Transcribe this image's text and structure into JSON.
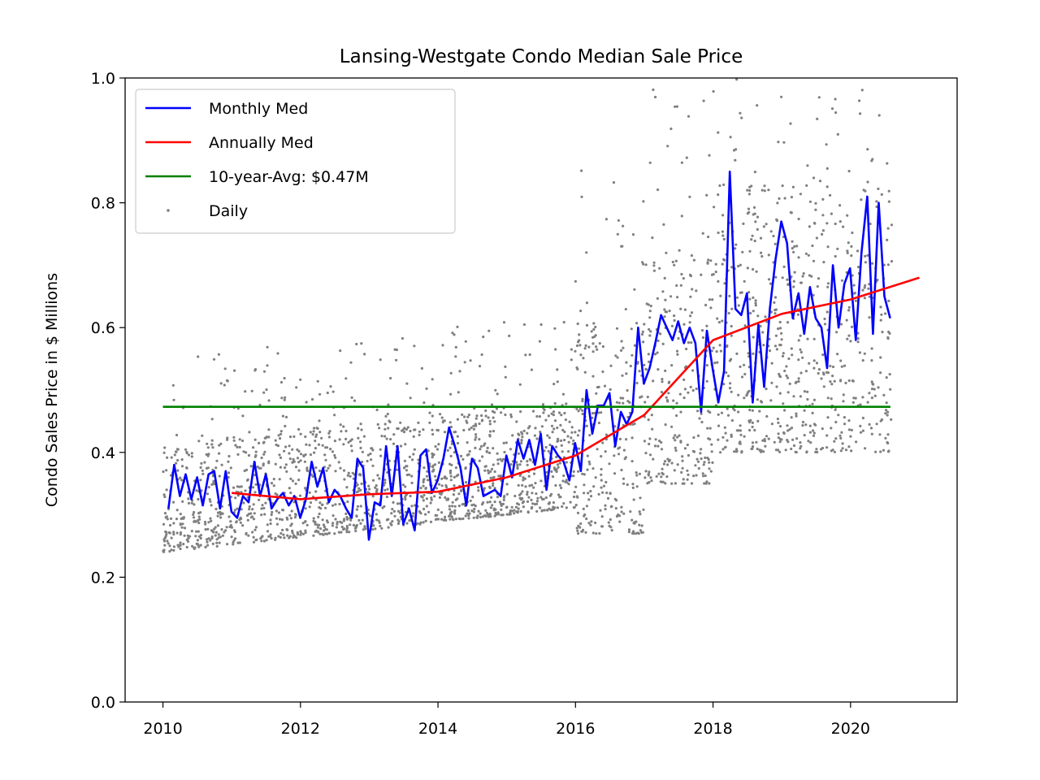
{
  "chart_data": {
    "type": "line",
    "title": "Lansing-Westgate Condo Median Sale Price",
    "xlabel": "",
    "ylabel": "Condo Sales Price in $ Millions",
    "xlim": [
      2009.45,
      2021.55
    ],
    "ylim": [
      0.0,
      1.0
    ],
    "xticks": [
      2010,
      2012,
      2014,
      2016,
      2018,
      2020
    ],
    "xtick_labels": [
      "2010",
      "2012",
      "2014",
      "2016",
      "2018",
      "2020"
    ],
    "yticks": [
      0.0,
      0.2,
      0.4,
      0.6,
      0.8,
      1.0
    ],
    "ytick_labels": [
      "0.0",
      "0.2",
      "0.4",
      "0.6",
      "0.8",
      "1.0"
    ],
    "grid": false,
    "legend_position": "top-left",
    "series": [
      {
        "name": "Monthly Med",
        "color": "#0000ff",
        "style": "line",
        "x_start": 2010.08,
        "x_step": 0.0833,
        "values": [
          0.31,
          0.38,
          0.33,
          0.365,
          0.325,
          0.36,
          0.315,
          0.365,
          0.37,
          0.31,
          0.37,
          0.305,
          0.295,
          0.33,
          0.32,
          0.385,
          0.33,
          0.365,
          0.31,
          0.325,
          0.335,
          0.315,
          0.33,
          0.295,
          0.325,
          0.385,
          0.345,
          0.375,
          0.32,
          0.34,
          0.33,
          0.31,
          0.295,
          0.39,
          0.375,
          0.26,
          0.32,
          0.315,
          0.41,
          0.33,
          0.41,
          0.285,
          0.31,
          0.275,
          0.395,
          0.405,
          0.335,
          0.355,
          0.39,
          0.44,
          0.41,
          0.375,
          0.315,
          0.39,
          0.375,
          0.33,
          0.335,
          0.34,
          0.33,
          0.395,
          0.36,
          0.42,
          0.39,
          0.42,
          0.38,
          0.43,
          0.34,
          0.41,
          0.395,
          0.385,
          0.355,
          0.415,
          0.37,
          0.5,
          0.43,
          0.475,
          0.475,
          0.495,
          0.41,
          0.465,
          0.445,
          0.465,
          0.6,
          0.51,
          0.535,
          0.575,
          0.62,
          0.6,
          0.58,
          0.61,
          0.575,
          0.6,
          0.575,
          0.465,
          0.595,
          0.535,
          0.48,
          0.53,
          0.85,
          0.63,
          0.62,
          0.655,
          0.48,
          0.605,
          0.505,
          0.63,
          0.71,
          0.77,
          0.735,
          0.615,
          0.655,
          0.59,
          0.665,
          0.615,
          0.6,
          0.535,
          0.7,
          0.6,
          0.67,
          0.695,
          0.58,
          0.72,
          0.81,
          0.59,
          0.8,
          0.65,
          0.615
        ]
      },
      {
        "name": "Annually Med",
        "color": "#ff0000",
        "style": "line",
        "x": [
          2011.0,
          2012.0,
          2013.0,
          2014.0,
          2015.0,
          2016.0,
          2017.0,
          2018.0,
          2019.0,
          2020.0,
          2021.0
        ],
        "values": [
          0.335,
          0.325,
          0.333,
          0.337,
          0.36,
          0.395,
          0.46,
          0.58,
          0.622,
          0.645,
          0.68
        ]
      },
      {
        "name": "10-year-Avg: $0.47M",
        "color": "#008000",
        "style": "line",
        "x": [
          2010.0,
          2020.58
        ],
        "values": [
          0.473,
          0.473
        ]
      },
      {
        "name": "Daily",
        "color": "#808080",
        "style": "scatter",
        "note_regimes": [
          {
            "x": [
              2010.0,
              2016.0
            ],
            "low": 0.24,
            "high": 0.47,
            "trend": 0.012
          },
          {
            "x": [
              2016.0,
              2017.0
            ],
            "low": 0.27,
            "high": 0.72,
            "trend": 0.0
          },
          {
            "x": [
              2017.0,
              2018.0
            ],
            "low": 0.35,
            "high": 0.85,
            "trend": 0.0
          },
          {
            "x": [
              2018.0,
              2020.6
            ],
            "low": 0.4,
            "high": 0.98,
            "trend": 0.0
          }
        ]
      }
    ]
  },
  "legend": {
    "items": [
      {
        "label": "Monthly Med",
        "color": "#0000ff",
        "kind": "line"
      },
      {
        "label": "Annually Med",
        "color": "#ff0000",
        "kind": "line"
      },
      {
        "label": "10-year-Avg: $0.47M",
        "color": "#008000",
        "kind": "line"
      },
      {
        "label": "Daily",
        "color": "#808080",
        "kind": "dot"
      }
    ]
  }
}
